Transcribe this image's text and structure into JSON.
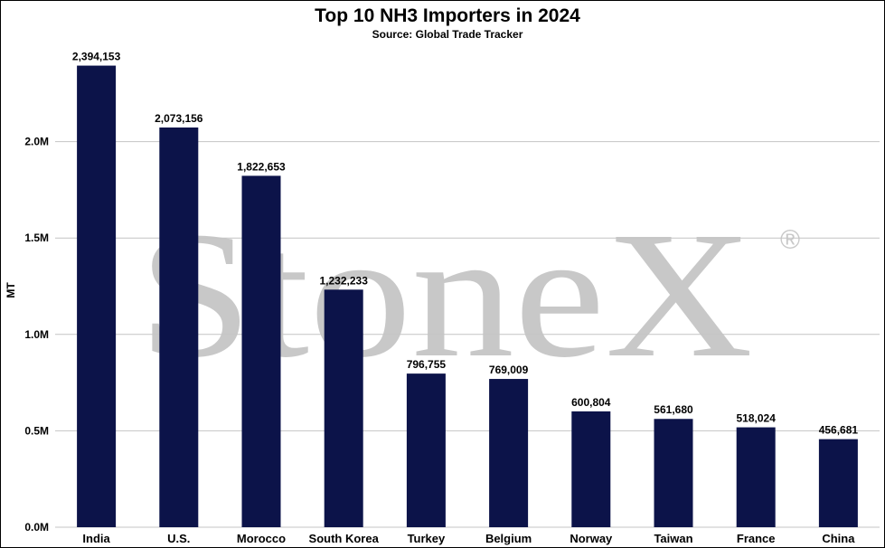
{
  "watermark": {
    "brand": "StoneX",
    "registered": "®"
  },
  "chart_data": {
    "type": "bar",
    "title": "Top 10 NH3 Importers in 2024",
    "subtitle": "Source: Global Trade Tracker",
    "xlabel": "",
    "ylabel": "MT",
    "categories": [
      "India",
      "U.S.",
      "Morocco",
      "South Korea",
      "Turkey",
      "Belgium",
      "Norway",
      "Taiwan",
      "France",
      "China"
    ],
    "values": [
      2394153,
      2073156,
      1822653,
      1232233,
      796755,
      769009,
      600804,
      561680,
      518024,
      456681
    ],
    "value_labels": [
      "2,394,153",
      "2,073,156",
      "1,822,653",
      "1,232,233",
      "796,755",
      "769,009",
      "600,804",
      "561,680",
      "518,024",
      "456,681"
    ],
    "yticks": [
      0,
      500000,
      1000000,
      1500000,
      2000000
    ],
    "ytick_labels": [
      "0.0M",
      "0.5M",
      "1.0M",
      "1.5M",
      "2.0M"
    ],
    "ylim": [
      0,
      2500000
    ],
    "grid": true,
    "bar_color": "#0c1349",
    "grid_color": "#c4c4c4"
  }
}
